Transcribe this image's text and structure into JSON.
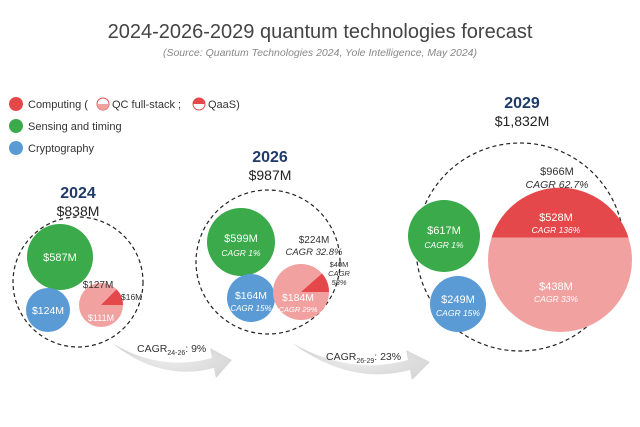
{
  "title": "2024-2026-2029 quantum technologies forecast",
  "subtitle": "(Source: Quantum Technologies 2024, Yole Intelligence, May 2024)",
  "legend": {
    "computing": {
      "label": "Computing (",
      "qc_label": "QC full-stack ;",
      "qaas_label": "QaaS)"
    },
    "sensing": {
      "label": "Sensing and timing"
    },
    "crypto": {
      "label": "Cryptography"
    }
  },
  "colors": {
    "computing_dark": "#e5484a",
    "computing_light": "#f2a1a1",
    "sensing": "#3aaa4a",
    "crypto": "#5a9bd6",
    "year_label": "#1f3a68",
    "arrow": "#e0e0e0",
    "text": "#333333"
  },
  "chart_data": {
    "type": "bubble",
    "title": "2024-2026-2029 quantum technologies forecast",
    "units": "USD",
    "years": [
      {
        "year": "2024",
        "total_label": "$838M",
        "total": 838,
        "segments": {
          "sensing": {
            "value": 587,
            "label": "$587M"
          },
          "cryptography": {
            "value": 124,
            "label": "$124M"
          },
          "computing": {
            "value": 127,
            "label": "$127M",
            "qc_full_stack": {
              "value": 111,
              "label": "$111M"
            },
            "qaas": {
              "value": 16,
              "label": "$16M"
            }
          }
        }
      },
      {
        "year": "2026",
        "total_label": "$987M",
        "total": 987,
        "segments": {
          "sensing": {
            "value": 599,
            "label": "$599M",
            "cagr": "CAGR 1%"
          },
          "cryptography": {
            "value": 164,
            "label": "$164M",
            "cagr": "CAGR 15%"
          },
          "computing": {
            "value": 224,
            "label": "$224M",
            "cagr": "CAGR 32.8%",
            "qc_full_stack": {
              "value": 184,
              "label": "$184M",
              "cagr": "CAGR 29%"
            },
            "qaas": {
              "value": 40,
              "label": "$40M",
              "cagr_line1": "CAGR",
              "cagr_line2": "58%"
            }
          }
        }
      },
      {
        "year": "2029",
        "total_label": "$1,832M",
        "total": 1832,
        "segments": {
          "sensing": {
            "value": 617,
            "label": "$617M",
            "cagr": "CAGR 1%"
          },
          "cryptography": {
            "value": 249,
            "label": "$249M",
            "cagr": "CAGR 15%"
          },
          "computing": {
            "value": 966,
            "label": "$966M",
            "cagr": "CAGR  62.7%",
            "qc_full_stack": {
              "value": 438,
              "label": "$438M",
              "cagr": "CAGR 33%"
            },
            "qaas": {
              "value": 528,
              "label": "$528M",
              "cagr": "CAGR 136%"
            }
          }
        }
      }
    ],
    "growth": [
      {
        "base": "CAGR",
        "sub": "24-26",
        "rest": ": 9%",
        "value_percent": 9
      },
      {
        "base": "CAGR",
        "sub": "26-29",
        "rest": ": 23%",
        "value_percent": 23
      }
    ]
  }
}
